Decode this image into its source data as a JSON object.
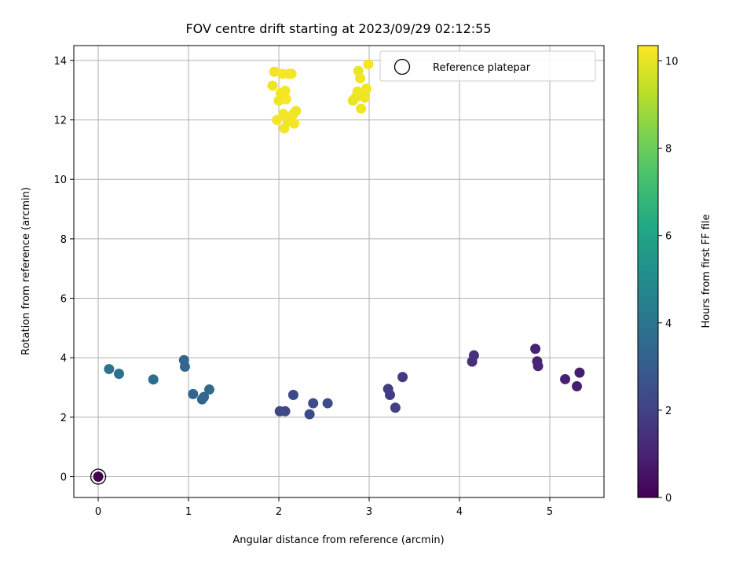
{
  "chart_data": {
    "type": "scatter",
    "title": "FOV centre drift starting at 2023/09/29 02:12:55",
    "xlabel": "Angular distance from reference (arcmin)",
    "ylabel": "Rotation from reference (arcmin)",
    "xlim": [
      -0.27,
      5.6
    ],
    "ylim": [
      -0.7,
      14.5
    ],
    "xticks": [
      0,
      1,
      2,
      3,
      4,
      5
    ],
    "yticks": [
      0,
      2,
      4,
      6,
      8,
      10,
      12,
      14
    ],
    "grid": true,
    "legend": {
      "placement": "top-right",
      "entries": [
        "Reference platepar"
      ]
    },
    "reference_point": {
      "x": 0,
      "y": 0
    },
    "colorbar": {
      "label": "Hours from first FF file",
      "range": [
        0,
        10.35
      ],
      "ticks": [
        0,
        2,
        4,
        6,
        8,
        10
      ],
      "colormap": "viridis"
    },
    "points": [
      {
        "x": 0.0,
        "y": 0.0,
        "h": 0.0
      },
      {
        "x": 4.84,
        "y": 4.3,
        "h": 1.0
      },
      {
        "x": 4.86,
        "y": 3.88,
        "h": 1.05
      },
      {
        "x": 4.87,
        "y": 3.72,
        "h": 1.1
      },
      {
        "x": 5.17,
        "y": 3.28,
        "h": 0.95
      },
      {
        "x": 5.3,
        "y": 3.04,
        "h": 0.9
      },
      {
        "x": 5.33,
        "y": 3.5,
        "h": 0.85
      },
      {
        "x": 4.14,
        "y": 3.87,
        "h": 1.4
      },
      {
        "x": 4.16,
        "y": 4.08,
        "h": 1.45
      },
      {
        "x": 3.21,
        "y": 2.95,
        "h": 1.8
      },
      {
        "x": 3.23,
        "y": 2.75,
        "h": 1.85
      },
      {
        "x": 3.29,
        "y": 2.32,
        "h": 1.9
      },
      {
        "x": 3.37,
        "y": 3.35,
        "h": 1.75
      },
      {
        "x": 2.01,
        "y": 2.2,
        "h": 2.2
      },
      {
        "x": 2.07,
        "y": 2.2,
        "h": 2.25
      },
      {
        "x": 2.16,
        "y": 2.75,
        "h": 2.3
      },
      {
        "x": 2.34,
        "y": 2.1,
        "h": 2.35
      },
      {
        "x": 2.38,
        "y": 2.47,
        "h": 2.4
      },
      {
        "x": 2.54,
        "y": 2.47,
        "h": 2.45
      },
      {
        "x": 0.95,
        "y": 3.92,
        "h": 3.4
      },
      {
        "x": 0.96,
        "y": 3.7,
        "h": 3.45
      },
      {
        "x": 1.05,
        "y": 2.78,
        "h": 3.3
      },
      {
        "x": 1.15,
        "y": 2.6,
        "h": 3.35
      },
      {
        "x": 1.17,
        "y": 2.68,
        "h": 3.4
      },
      {
        "x": 1.23,
        "y": 2.93,
        "h": 3.5
      },
      {
        "x": 0.61,
        "y": 3.27,
        "h": 3.7
      },
      {
        "x": 0.12,
        "y": 3.62,
        "h": 3.9
      },
      {
        "x": 0.23,
        "y": 3.46,
        "h": 3.85
      },
      {
        "x": 1.93,
        "y": 13.15,
        "h": 10.1
      },
      {
        "x": 1.95,
        "y": 13.62,
        "h": 10.15
      },
      {
        "x": 1.98,
        "y": 12.0,
        "h": 10.2
      },
      {
        "x": 2.0,
        "y": 12.65,
        "h": 10.1
      },
      {
        "x": 2.02,
        "y": 12.9,
        "h": 10.2
      },
      {
        "x": 2.04,
        "y": 13.55,
        "h": 10.25
      },
      {
        "x": 2.05,
        "y": 12.2,
        "h": 10.2
      },
      {
        "x": 2.06,
        "y": 11.72,
        "h": 10.15
      },
      {
        "x": 2.07,
        "y": 12.98,
        "h": 10.2
      },
      {
        "x": 2.08,
        "y": 12.7,
        "h": 10.25
      },
      {
        "x": 2.1,
        "y": 11.95,
        "h": 10.1
      },
      {
        "x": 2.11,
        "y": 13.55,
        "h": 10.2
      },
      {
        "x": 2.12,
        "y": 12.1,
        "h": 10.15
      },
      {
        "x": 2.14,
        "y": 13.55,
        "h": 10.2
      },
      {
        "x": 2.16,
        "y": 12.2,
        "h": 10.25
      },
      {
        "x": 2.17,
        "y": 11.88,
        "h": 10.2
      },
      {
        "x": 2.19,
        "y": 12.3,
        "h": 10.1
      },
      {
        "x": 2.82,
        "y": 12.65,
        "h": 10.0
      },
      {
        "x": 2.85,
        "y": 12.75,
        "h": 10.05
      },
      {
        "x": 2.87,
        "y": 12.95,
        "h": 10.1
      },
      {
        "x": 2.88,
        "y": 13.65,
        "h": 10.05
      },
      {
        "x": 2.9,
        "y": 13.4,
        "h": 10.15
      },
      {
        "x": 2.91,
        "y": 12.38,
        "h": 10.1
      },
      {
        "x": 2.93,
        "y": 12.9,
        "h": 10.2
      },
      {
        "x": 2.95,
        "y": 12.75,
        "h": 10.1
      },
      {
        "x": 2.97,
        "y": 13.05,
        "h": 10.15
      },
      {
        "x": 2.99,
        "y": 13.87,
        "h": 10.2
      }
    ]
  }
}
